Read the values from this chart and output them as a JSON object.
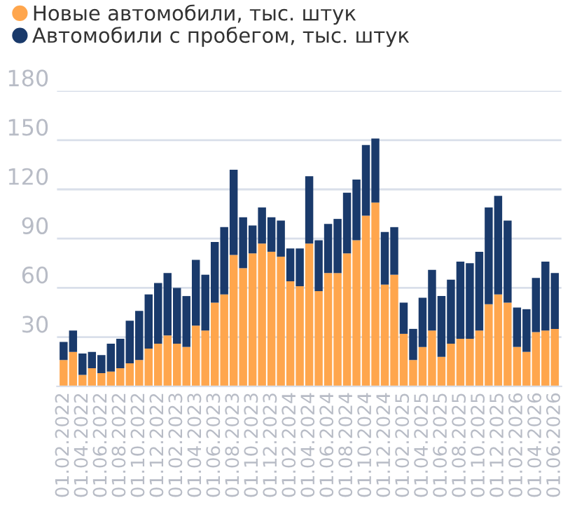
{
  "chart_data": {
    "type": "bar",
    "stacked": true,
    "categories": [
      "01.02.2022",
      null,
      "01.04.2022",
      null,
      "01.06.2022",
      null,
      "01.08.2022",
      null,
      "01.10.2022",
      null,
      "01.12.2022",
      null,
      "01.02.2023",
      null,
      "01.04.2023",
      null,
      "01.06.2023",
      null,
      "01.08.2023",
      null,
      "01.10.2023",
      null,
      "01.12.2023",
      null,
      "01.02.2024",
      null,
      "01.04.2024",
      null,
      "01.06.2024",
      null,
      "01.08.2024",
      null,
      "01.10.2024",
      null,
      "01.12.2024",
      null,
      "01.02.2025",
      null,
      "01.04.2025",
      null,
      "01.06.2025",
      null,
      "01.08.2025",
      null,
      "01.10.2025",
      null,
      "01.12.2025",
      null,
      "01.02.2026",
      null,
      "01.04.2026",
      null,
      "01.06.2026"
    ],
    "series": [
      {
        "name": "Новые автомобили, тыс. штук",
        "color": "#ffa64d",
        "values": [
          16,
          21,
          7,
          11,
          8,
          9,
          11,
          14,
          16,
          23,
          26,
          31,
          26,
          24,
          37,
          34,
          51,
          56,
          80,
          72,
          81,
          87,
          82,
          79,
          64,
          61,
          87,
          58,
          69,
          69,
          81,
          89,
          104,
          112,
          62,
          68,
          32,
          16,
          24,
          34,
          18,
          26,
          29,
          29,
          34,
          50,
          56,
          51,
          24,
          21,
          33,
          34,
          35
        ]
      },
      {
        "name": "Автомобили с пробегом, тыс. штук",
        "color": "#1a3a6b",
        "values": [
          11,
          13,
          13,
          10,
          11,
          17,
          18,
          26,
          30,
          33,
          37,
          38,
          34,
          31,
          40,
          34,
          37,
          41,
          52,
          31,
          17,
          22,
          21,
          22,
          20,
          23,
          41,
          31,
          30,
          33,
          37,
          37,
          43,
          39,
          32,
          29,
          19,
          19,
          30,
          37,
          37,
          39,
          47,
          46,
          48,
          59,
          60,
          50,
          24,
          26,
          33,
          42,
          34
        ]
      }
    ],
    "ylim": [
      0,
      180
    ],
    "yticks": [
      30,
      60,
      90,
      120,
      150,
      180
    ],
    "grid": "y",
    "legend": "top left"
  }
}
